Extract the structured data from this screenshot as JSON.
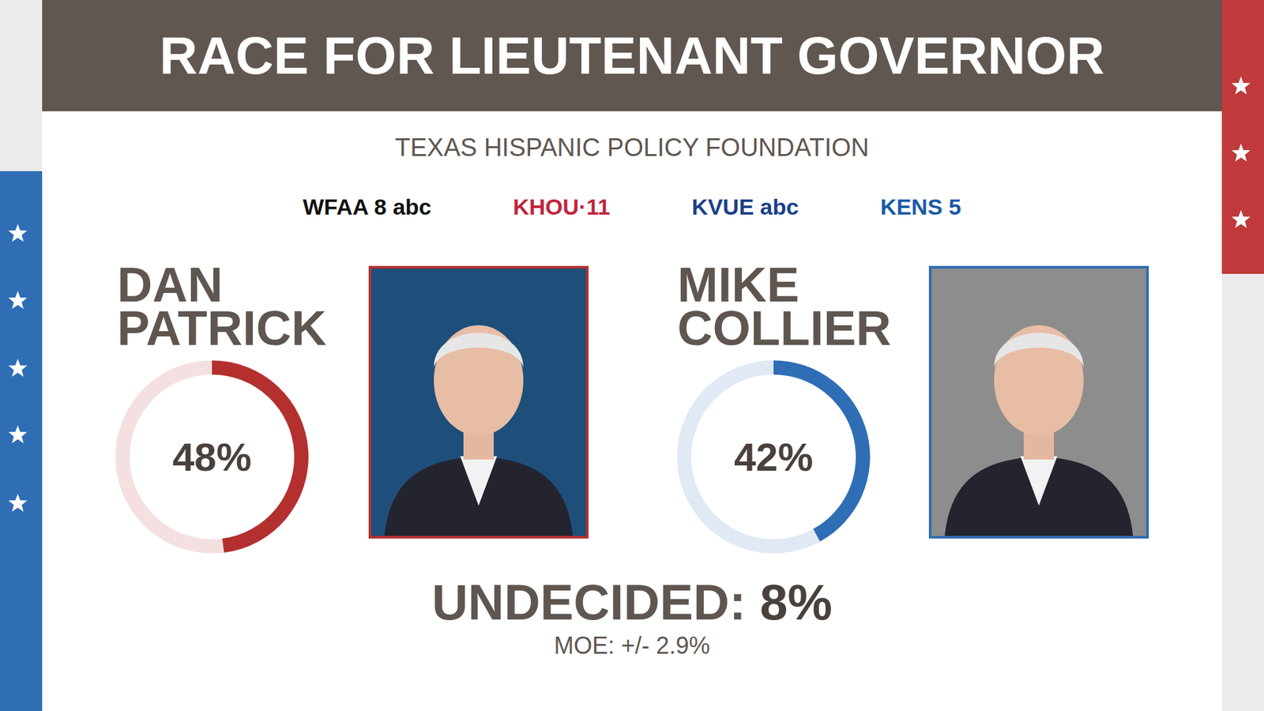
{
  "title": "RACE FOR LIEUTENANT GOVERNOR",
  "source": "TEXAS HISPANIC POLICY FOUNDATION",
  "stations": [
    "WFAA 8 abc",
    "KHOU·11",
    "KVUE abc",
    "KENS 5"
  ],
  "chart_data": [
    {
      "type": "radial_bar",
      "title": "DAN PATRICK",
      "values": [
        48
      ],
      "value_labels": [
        "48%"
      ],
      "color": "#b3302f",
      "ylim": [
        0,
        100
      ],
      "tick_labels": false
    },
    {
      "type": "radial_bar",
      "title": "MIKE COLLIER",
      "values": [
        42
      ],
      "value_labels": [
        "42%"
      ],
      "color": "#2f6db5",
      "ylim": [
        0,
        100
      ],
      "tick_labels": false
    }
  ],
  "undecided": {
    "label": "UNDECIDED:",
    "value_label": "8%"
  },
  "moe": "MOE: +/- 2.9%"
}
